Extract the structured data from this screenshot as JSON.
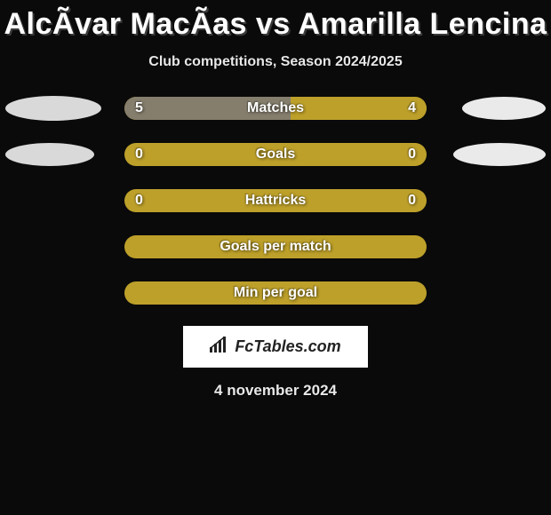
{
  "title": "AlcÃ­var MacÃ­as vs Amarilla Lencina",
  "subtitle": "Club competitions, Season 2024/2025",
  "date": "4 november 2024",
  "logo_text": "FcTables.com",
  "colors": {
    "background": "#0a0a0a",
    "bar_track": "#bda02a",
    "bar_left_fill": "#857e6d",
    "bar_right_fill": "#bda02a",
    "ellipse_left": "#d9d9d9",
    "ellipse_right": "#eaeaea",
    "logo_bg": "#ffffff",
    "logo_text": "#222222",
    "text": "#ffffff"
  },
  "ellipse_sizes": {
    "matches": {
      "left_w": 108,
      "left_h": 28,
      "right_w": 94,
      "right_h": 26
    },
    "goals": {
      "left_w": 100,
      "left_h": 26,
      "right_w": 104,
      "right_h": 26
    }
  },
  "rows": [
    {
      "id": "matches",
      "label": "Matches",
      "left_value": "5",
      "right_value": "4",
      "left_fill_pct": 55,
      "right_fill_pct": 45,
      "show_ellipses": true
    },
    {
      "id": "goals",
      "label": "Goals",
      "left_value": "0",
      "right_value": "0",
      "left_fill_pct": 0,
      "right_fill_pct": 0,
      "show_ellipses": true
    },
    {
      "id": "hattricks",
      "label": "Hattricks",
      "left_value": "0",
      "right_value": "0",
      "left_fill_pct": 0,
      "right_fill_pct": 0,
      "show_ellipses": false
    },
    {
      "id": "gpm",
      "label": "Goals per match",
      "left_value": "",
      "right_value": "",
      "left_fill_pct": 0,
      "right_fill_pct": 0,
      "show_ellipses": false
    },
    {
      "id": "mpg",
      "label": "Min per goal",
      "left_value": "",
      "right_value": "",
      "left_fill_pct": 0,
      "right_fill_pct": 0,
      "show_ellipses": false
    }
  ]
}
